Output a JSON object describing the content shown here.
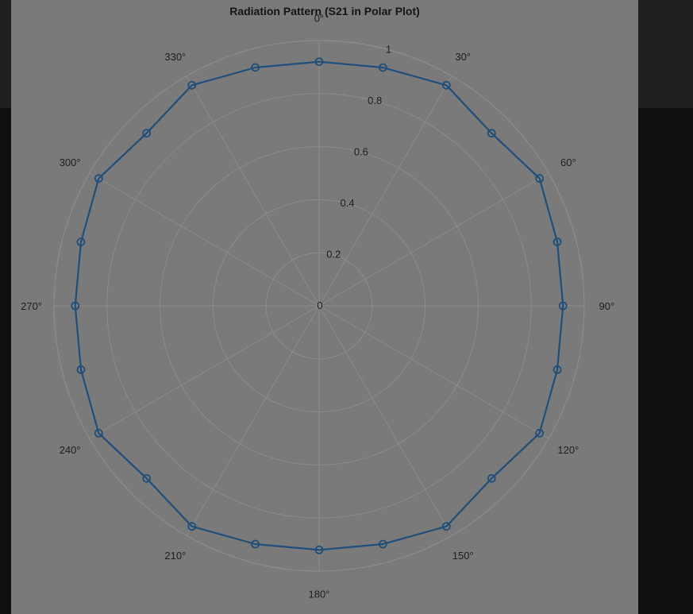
{
  "chart_data": {
    "type": "polar-line",
    "title": "Radiation Pattern (S21 in Polar Plot)",
    "theta_deg": [
      0,
      15,
      30,
      45,
      60,
      75,
      90,
      105,
      120,
      135,
      150,
      165,
      180,
      195,
      210,
      225,
      240,
      255,
      270,
      285,
      300,
      315,
      330,
      345
    ],
    "r": [
      0.92,
      0.93,
      0.96,
      0.92,
      0.96,
      0.93,
      0.92,
      0.93,
      0.96,
      0.92,
      0.96,
      0.93,
      0.92,
      0.93,
      0.96,
      0.92,
      0.96,
      0.93,
      0.92,
      0.93,
      0.96,
      0.92,
      0.96,
      0.93
    ],
    "rlim": [
      0,
      1
    ],
    "radial_ticks": [
      "0",
      "0.2",
      "0.4",
      "0.6",
      "0.8",
      "1"
    ],
    "radial_tick_values": [
      0,
      0.2,
      0.4,
      0.6,
      0.8,
      1
    ],
    "angle_ticks": [
      "0°",
      "30°",
      "60°",
      "90°",
      "120°",
      "150°",
      "180°",
      "210°",
      "240°",
      "270°",
      "300°",
      "330°"
    ],
    "angle_tick_values": [
      0,
      30,
      60,
      90,
      120,
      150,
      180,
      210,
      240,
      270,
      300,
      330
    ],
    "theta_zero": "top",
    "theta_direction": "clockwise",
    "marker": "circle",
    "grid": true,
    "colors": {
      "line": "#1f4e7a",
      "grid": "#8c8c8c",
      "panel": "#7a7a7a",
      "page": "#0f0f0f"
    }
  }
}
